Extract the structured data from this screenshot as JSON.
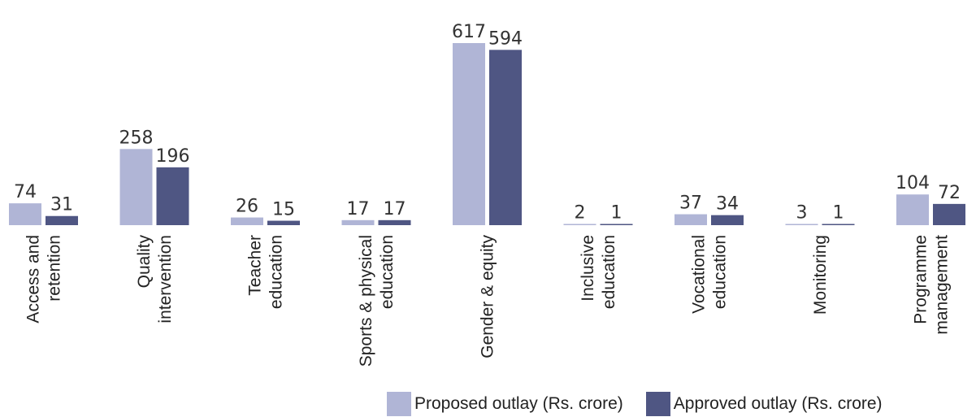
{
  "chart_data": {
    "type": "bar",
    "categories": [
      [
        "Access and",
        "retention"
      ],
      [
        "Quality",
        "intervention"
      ],
      [
        "Teacher",
        "education"
      ],
      [
        "Sports & physical",
        "education"
      ],
      [
        "Gender & equity"
      ],
      [
        "Inclusive",
        "education"
      ],
      [
        "Vocational",
        "education"
      ],
      [
        "Monitoring"
      ],
      [
        "Programme",
        "management"
      ]
    ],
    "series": [
      {
        "name": "Proposed outlay (Rs. crore)",
        "color": "#b0b5d6",
        "values": [
          74,
          258,
          26,
          17,
          617,
          2,
          37,
          3,
          104
        ]
      },
      {
        "name": "Approved outlay (Rs. crore)",
        "color": "#4f5683",
        "values": [
          31,
          196,
          15,
          17,
          594,
          1,
          34,
          1,
          72
        ]
      }
    ],
    "ylim": [
      0,
      617
    ],
    "grid": false,
    "legend_position": "bottom-right"
  }
}
